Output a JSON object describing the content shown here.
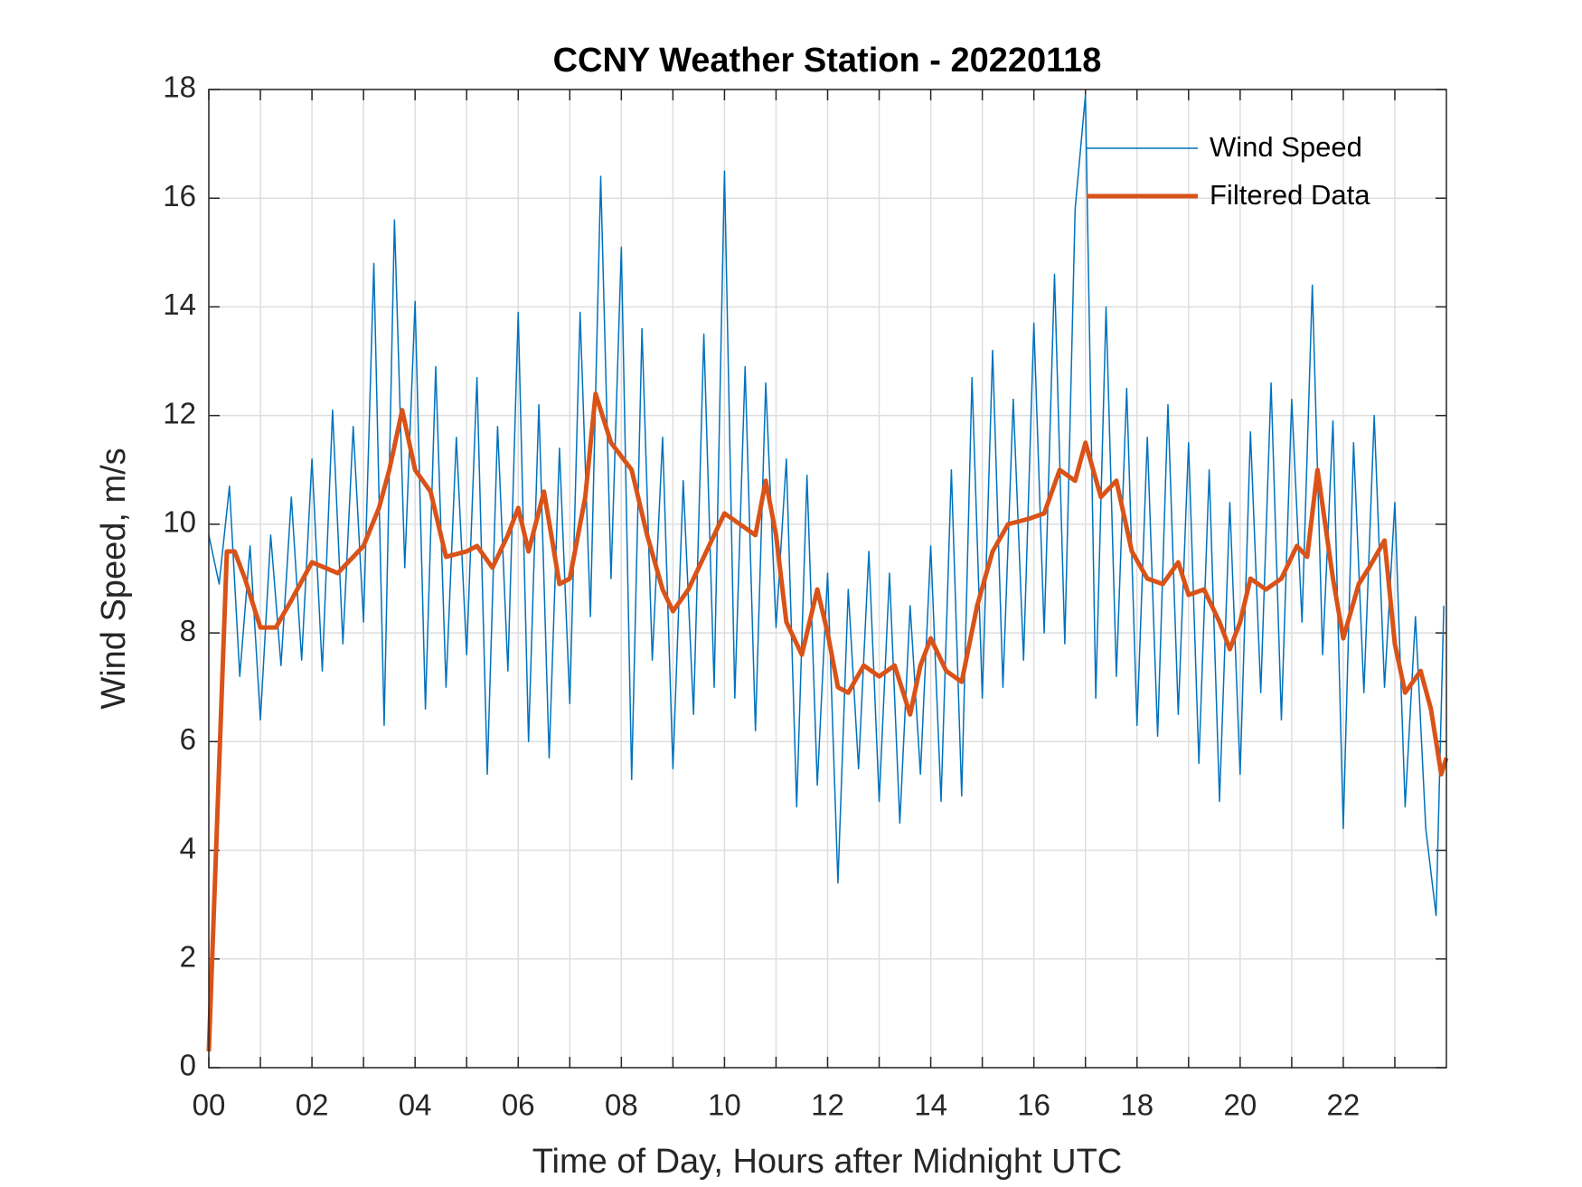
{
  "chart_data": {
    "type": "line",
    "title": "CCNY Weather Station - 20220118",
    "x_label": "Time of Day, Hours after Midnight UTC",
    "y_label": "Wind Speed, m/s",
    "xlim": [
      0,
      24
    ],
    "xticks": [
      {
        "value": 0,
        "label": "00"
      },
      {
        "value": 2,
        "label": "02"
      },
      {
        "value": 4,
        "label": "04"
      },
      {
        "value": 6,
        "label": "06"
      },
      {
        "value": 8,
        "label": "08"
      },
      {
        "value": 10,
        "label": "10"
      },
      {
        "value": 12,
        "label": "12"
      },
      {
        "value": 14,
        "label": "14"
      },
      {
        "value": 16,
        "label": "16"
      },
      {
        "value": 18,
        "label": "18"
      },
      {
        "value": 20,
        "label": "20"
      },
      {
        "value": 22,
        "label": "22"
      }
    ],
    "x_minor_ticks": [
      1,
      3,
      5,
      7,
      9,
      11,
      13,
      15,
      17,
      19,
      21,
      23
    ],
    "ylim": [
      0,
      18
    ],
    "yticks": [
      0,
      2,
      4,
      6,
      8,
      10,
      12,
      14,
      16,
      18
    ],
    "grid": true,
    "legend": "top-right",
    "series": [
      {
        "name": "Wind Speed",
        "color": "#0072bd",
        "linewidth": 1.5,
        "x": [
          0,
          0.2,
          0.4,
          0.6,
          0.8,
          1,
          1.2,
          1.4,
          1.6,
          1.8,
          2,
          2.2,
          2.4,
          2.6,
          2.8,
          3,
          3.2,
          3.4,
          3.6,
          3.8,
          4,
          4.2,
          4.4,
          4.6,
          4.8,
          5,
          5.2,
          5.4,
          5.6,
          5.8,
          6,
          6.2,
          6.4,
          6.6,
          6.8,
          7,
          7.2,
          7.4,
          7.6,
          7.8,
          8,
          8.2,
          8.4,
          8.6,
          8.8,
          9,
          9.2,
          9.4,
          9.6,
          9.8,
          10,
          10.2,
          10.4,
          10.6,
          10.8,
          11,
          11.2,
          11.4,
          11.6,
          11.8,
          12,
          12.2,
          12.4,
          12.6,
          12.8,
          13,
          13.2,
          13.4,
          13.6,
          13.8,
          14,
          14.2,
          14.4,
          14.6,
          14.8,
          15,
          15.2,
          15.4,
          15.6,
          15.8,
          16,
          16.2,
          16.4,
          16.6,
          16.8,
          17,
          17.2,
          17.4,
          17.6,
          17.8,
          18,
          18.2,
          18.4,
          18.6,
          18.8,
          19,
          19.2,
          19.4,
          19.6,
          19.8,
          20,
          20.2,
          20.4,
          20.6,
          20.8,
          21,
          21.2,
          21.4,
          21.6,
          21.8,
          22,
          22.2,
          22.4,
          22.6,
          22.8,
          23,
          23.2,
          23.4,
          23.6,
          23.8,
          23.95
        ],
        "values": [
          9.8,
          8.9,
          10.7,
          7.2,
          9.6,
          6.4,
          9.8,
          7.4,
          10.5,
          7.5,
          11.2,
          7.3,
          12.1,
          7.8,
          11.8,
          8.2,
          14.8,
          6.3,
          15.6,
          9.2,
          14.1,
          6.6,
          12.9,
          7,
          11.6,
          7.6,
          12.7,
          5.4,
          11.8,
          7.3,
          13.9,
          6,
          12.2,
          5.7,
          11.4,
          6.7,
          13.9,
          8.3,
          16.4,
          9,
          15.1,
          5.3,
          13.6,
          7.5,
          11.6,
          5.5,
          10.8,
          6.5,
          13.5,
          7,
          16.5,
          6.8,
          12.9,
          6.2,
          12.6,
          8.1,
          11.2,
          4.8,
          10.9,
          5.2,
          9.1,
          3.4,
          8.8,
          5.5,
          9.5,
          4.9,
          9.1,
          4.5,
          8.5,
          5.4,
          9.6,
          4.9,
          11,
          5,
          12.7,
          6.8,
          13.2,
          7,
          12.3,
          7.5,
          13.7,
          8,
          14.6,
          7.8,
          15.8,
          17.9,
          6.8,
          14,
          7.2,
          12.5,
          6.3,
          11.6,
          6.1,
          12.2,
          6.5,
          11.5,
          5.6,
          11,
          4.9,
          10.4,
          5.4,
          11.7,
          6.9,
          12.6,
          6.4,
          12.3,
          8.2,
          14.4,
          7.6,
          11.9,
          4.4,
          11.5,
          6.9,
          12,
          7,
          10.4,
          4.8,
          8.3,
          4.4,
          2.8,
          8.5
        ]
      },
      {
        "name": "Filtered Data",
        "color": "#d95319",
        "linewidth": 5,
        "x": [
          0,
          0.35,
          0.5,
          0.7,
          1,
          1.3,
          1.6,
          2,
          2.5,
          3,
          3.3,
          3.5,
          3.75,
          4,
          4.3,
          4.6,
          5,
          5.2,
          5.5,
          5.8,
          6,
          6.2,
          6.5,
          6.8,
          7,
          7.3,
          7.5,
          7.8,
          8.2,
          8.5,
          8.8,
          9,
          9.3,
          9.7,
          10,
          10.3,
          10.6,
          10.8,
          11,
          11.2,
          11.5,
          11.8,
          12,
          12.2,
          12.4,
          12.7,
          13,
          13.3,
          13.6,
          13.8,
          14,
          14.3,
          14.6,
          14.9,
          15.2,
          15.5,
          15.9,
          16.2,
          16.5,
          16.8,
          17,
          17.3,
          17.6,
          17.9,
          18.2,
          18.5,
          18.8,
          19,
          19.3,
          19.6,
          19.8,
          20,
          20.2,
          20.5,
          20.8,
          21.1,
          21.3,
          21.5,
          21.8,
          22,
          22.3,
          22.5,
          22.8,
          23,
          23.2,
          23.5,
          23.7,
          23.9,
          24
        ],
        "values": [
          0.3,
          9.5,
          9.5,
          9,
          8.1,
          8.1,
          8.6,
          9.3,
          9.1,
          9.6,
          10.3,
          11,
          12.1,
          11,
          10.6,
          9.4,
          9.5,
          9.6,
          9.2,
          9.8,
          10.3,
          9.5,
          10.6,
          8.9,
          9,
          10.5,
          12.4,
          11.5,
          11,
          9.8,
          8.8,
          8.4,
          8.8,
          9.6,
          10.2,
          10,
          9.8,
          10.8,
          9.8,
          8.2,
          7.6,
          8.8,
          8,
          7,
          6.9,
          7.4,
          7.2,
          7.4,
          6.5,
          7.4,
          7.9,
          7.3,
          7.1,
          8.5,
          9.5,
          10,
          10.1,
          10.2,
          11,
          10.8,
          11.5,
          10.5,
          10.8,
          9.5,
          9,
          8.9,
          9.3,
          8.7,
          8.8,
          8.2,
          7.7,
          8.2,
          9,
          8.8,
          9,
          9.6,
          9.4,
          11,
          9,
          7.9,
          8.9,
          9.2,
          9.7,
          7.8,
          6.9,
          7.3,
          6.6,
          5.4,
          5.7
        ]
      }
    ]
  }
}
